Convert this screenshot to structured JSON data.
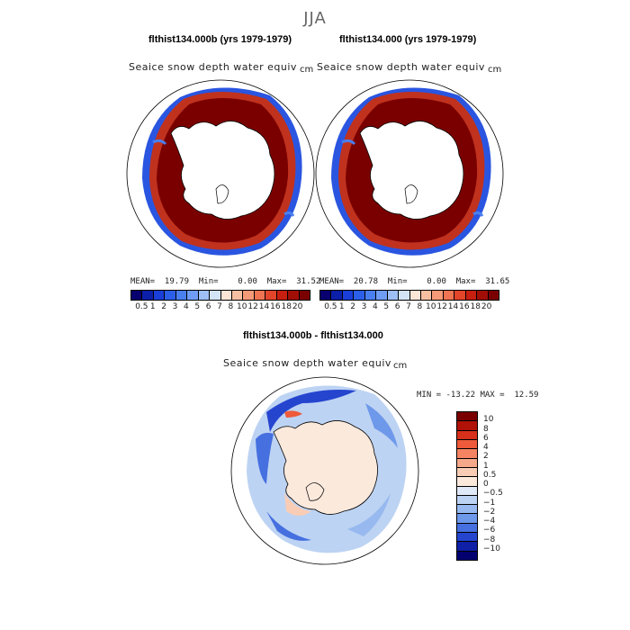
{
  "season": "JJA",
  "top_left": {
    "title": "flthist134.000b (yrs 1979-1979)",
    "variable": "Seaice snow depth water equiv",
    "units": "cm",
    "stats": "MEAN=  19.79  Min=    0.00  Max=  31.52"
  },
  "top_right": {
    "title": "flthist134.000 (yrs 1979-1979)",
    "variable": "Seaice snow depth water equiv",
    "units": "cm",
    "stats": "MEAN=  20.78  Min=    0.00  Max=  31.65"
  },
  "abs_colorbar": {
    "labels": [
      "0.5",
      "1",
      "2",
      "3",
      "4",
      "5",
      "6",
      "7",
      "8",
      "10",
      "12",
      "14",
      "16",
      "18",
      "20"
    ],
    "colors": [
      "#07006e",
      "#0b1fa8",
      "#1a3fd8",
      "#2c5fe8",
      "#4a7ff0",
      "#6f9df5",
      "#9dbff5",
      "#d3e4f7",
      "#fbe5d6",
      "#f8c0a2",
      "#f59a78",
      "#ef7452",
      "#e3452a",
      "#c71f10",
      "#a10e06",
      "#7a0000"
    ]
  },
  "diff": {
    "title": "flthist134.000b - flthist134.000",
    "variable": "Seaice snow depth water equiv",
    "units": "cm",
    "stats": "MIN = -13.22 MAX =  12.59",
    "labels": [
      "10",
      "8",
      "6",
      "4",
      "2",
      "1",
      "0.5",
      "0",
      "−0.5",
      "−1",
      "−2",
      "−4",
      "−6",
      "−8",
      "−10"
    ],
    "colors": [
      "#7a0000",
      "#b01208",
      "#d8301a",
      "#ee5a3a",
      "#f48462",
      "#f6a98a",
      "#f9cdb5",
      "#fbe9dc",
      "#dfe9f7",
      "#bdd3f3",
      "#97b9ef",
      "#6e98ea",
      "#4670e0",
      "#2545cf",
      "#0f1fa6",
      "#030070"
    ]
  }
}
